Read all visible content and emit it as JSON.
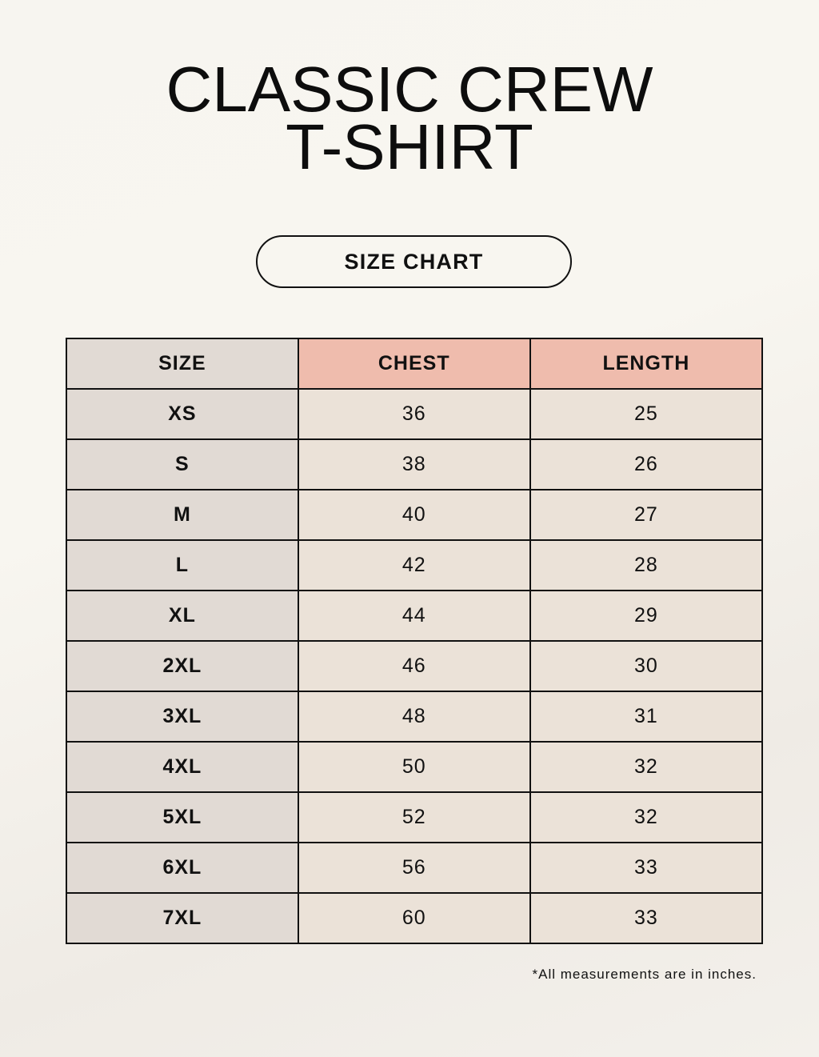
{
  "title": {
    "line1": "CLASSIC CREW",
    "line2": "T-SHIRT"
  },
  "badge": "SIZE CHART",
  "colors": {
    "size_column": "#e1dad4",
    "measure_header": "#efbcad",
    "value_cells": "#ebe2d8"
  },
  "table": {
    "headers": [
      "SIZE",
      "CHEST",
      "LENGTH"
    ],
    "rows": [
      [
        "XS",
        "36",
        "25"
      ],
      [
        "S",
        "38",
        "26"
      ],
      [
        "M",
        "40",
        "27"
      ],
      [
        "L",
        "42",
        "28"
      ],
      [
        "XL",
        "44",
        "29"
      ],
      [
        "2XL",
        "46",
        "30"
      ],
      [
        "3XL",
        "48",
        "31"
      ],
      [
        "4XL",
        "50",
        "32"
      ],
      [
        "5XL",
        "52",
        "32"
      ],
      [
        "6XL",
        "56",
        "33"
      ],
      [
        "7XL",
        "60",
        "33"
      ]
    ]
  },
  "footnote": "*All measurements are in inches."
}
